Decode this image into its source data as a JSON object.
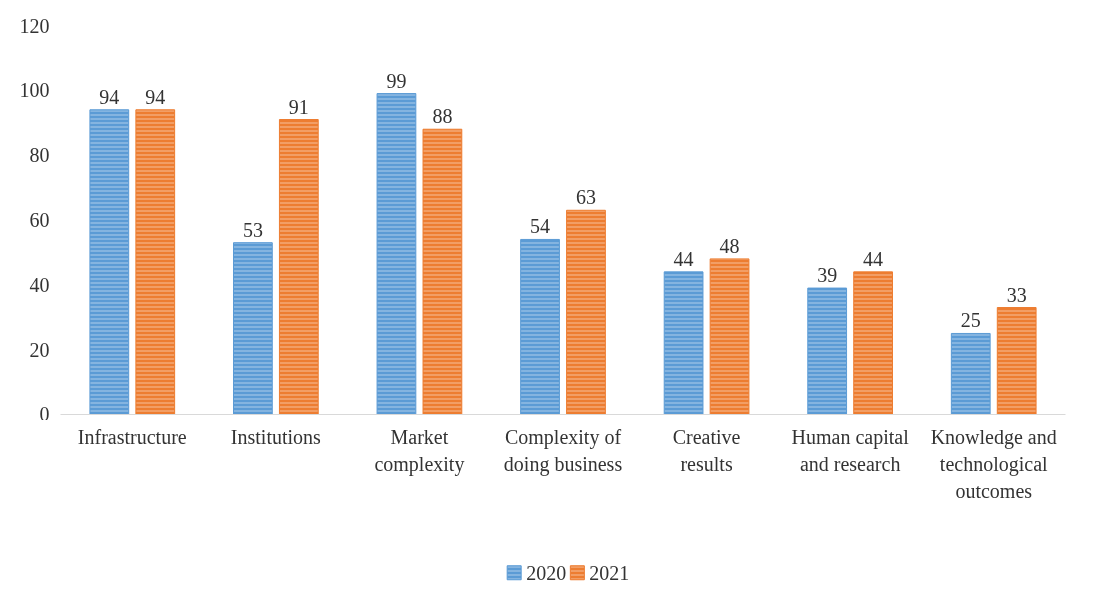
{
  "chart_data": {
    "type": "bar",
    "categories": [
      "Infrastructure",
      "Institutions",
      "Market complexity",
      "Complexity of doing business",
      "Creative results",
      "Human capital and research",
      "Knowledge and technological outcomes"
    ],
    "series": [
      {
        "name": "2020",
        "color": "#5b9bd5",
        "values": [
          94,
          53,
          99,
          54,
          44,
          39,
          25
        ]
      },
      {
        "name": "2021",
        "color": "#ed7d31",
        "values": [
          94,
          91,
          88,
          63,
          48,
          44,
          33
        ]
      }
    ],
    "ylim": [
      0,
      120
    ],
    "yticks": [
      0,
      20,
      40,
      60,
      80,
      100,
      120
    ],
    "grid": false,
    "legend": "bottom",
    "data_labels": true
  }
}
